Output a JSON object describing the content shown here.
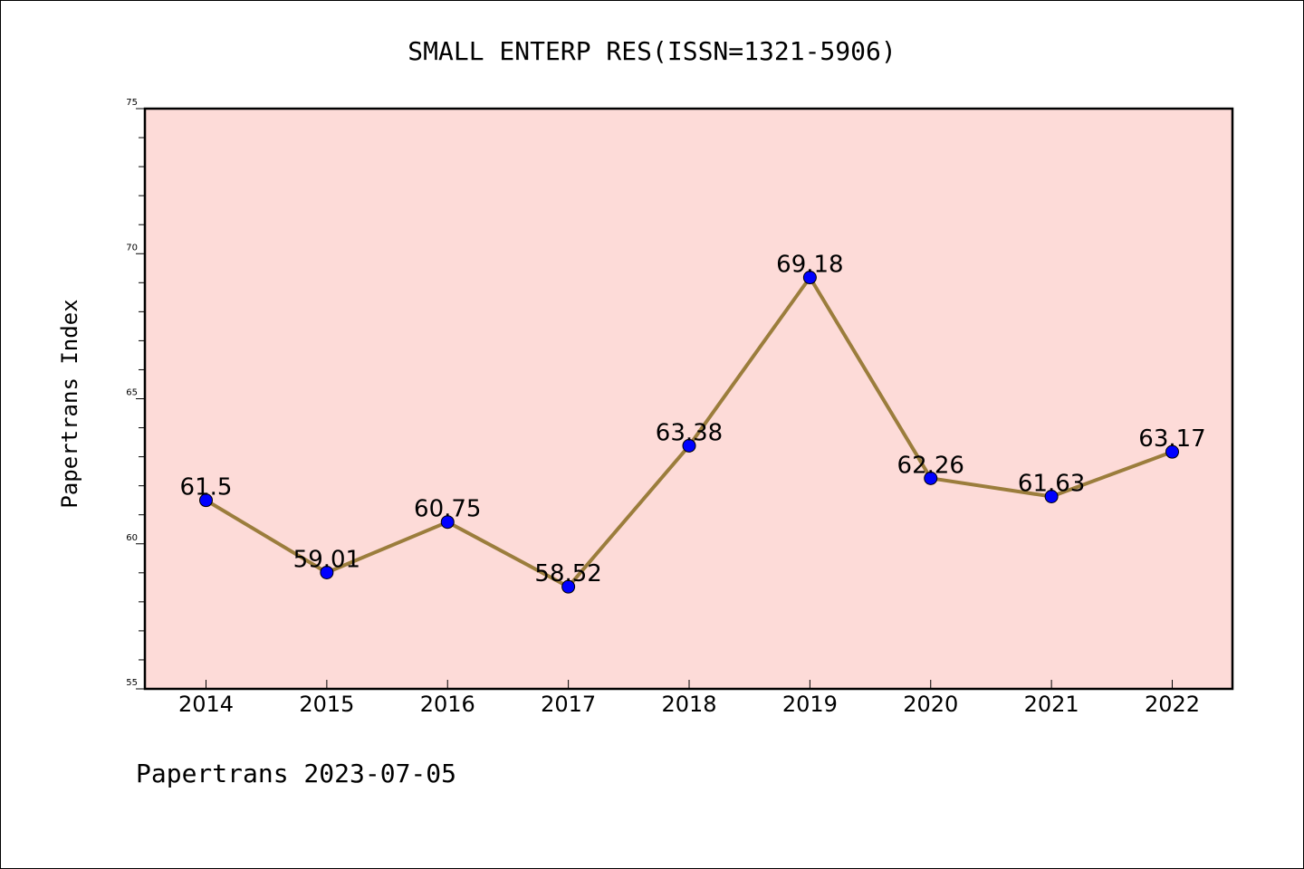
{
  "chart_data": {
    "type": "line",
    "title": "SMALL ENTERP RES(ISSN=1321-5906)",
    "ylabel": "Papertrans Index",
    "xlabel": "",
    "footer": "Papertrans 2023-07-05",
    "categories": [
      "2014",
      "2015",
      "2016",
      "2017",
      "2018",
      "2019",
      "2020",
      "2021",
      "2022"
    ],
    "values": [
      61.5,
      59.01,
      60.75,
      58.52,
      63.38,
      69.18,
      62.26,
      61.63,
      63.17
    ],
    "data_labels": [
      "61.5",
      "59.01",
      "60.75",
      "58.52",
      "63.38",
      "69.18",
      "62.26",
      "61.63",
      "63.17"
    ],
    "ylim": [
      55,
      75
    ],
    "yticks": [
      "55",
      "60",
      "65",
      "70",
      "75"
    ],
    "grid": false,
    "legend": "none",
    "colors": {
      "plot_background": "#fddbd8",
      "line": "#9b7d3c",
      "marker": "#0000ff",
      "axes": "#000000"
    }
  }
}
